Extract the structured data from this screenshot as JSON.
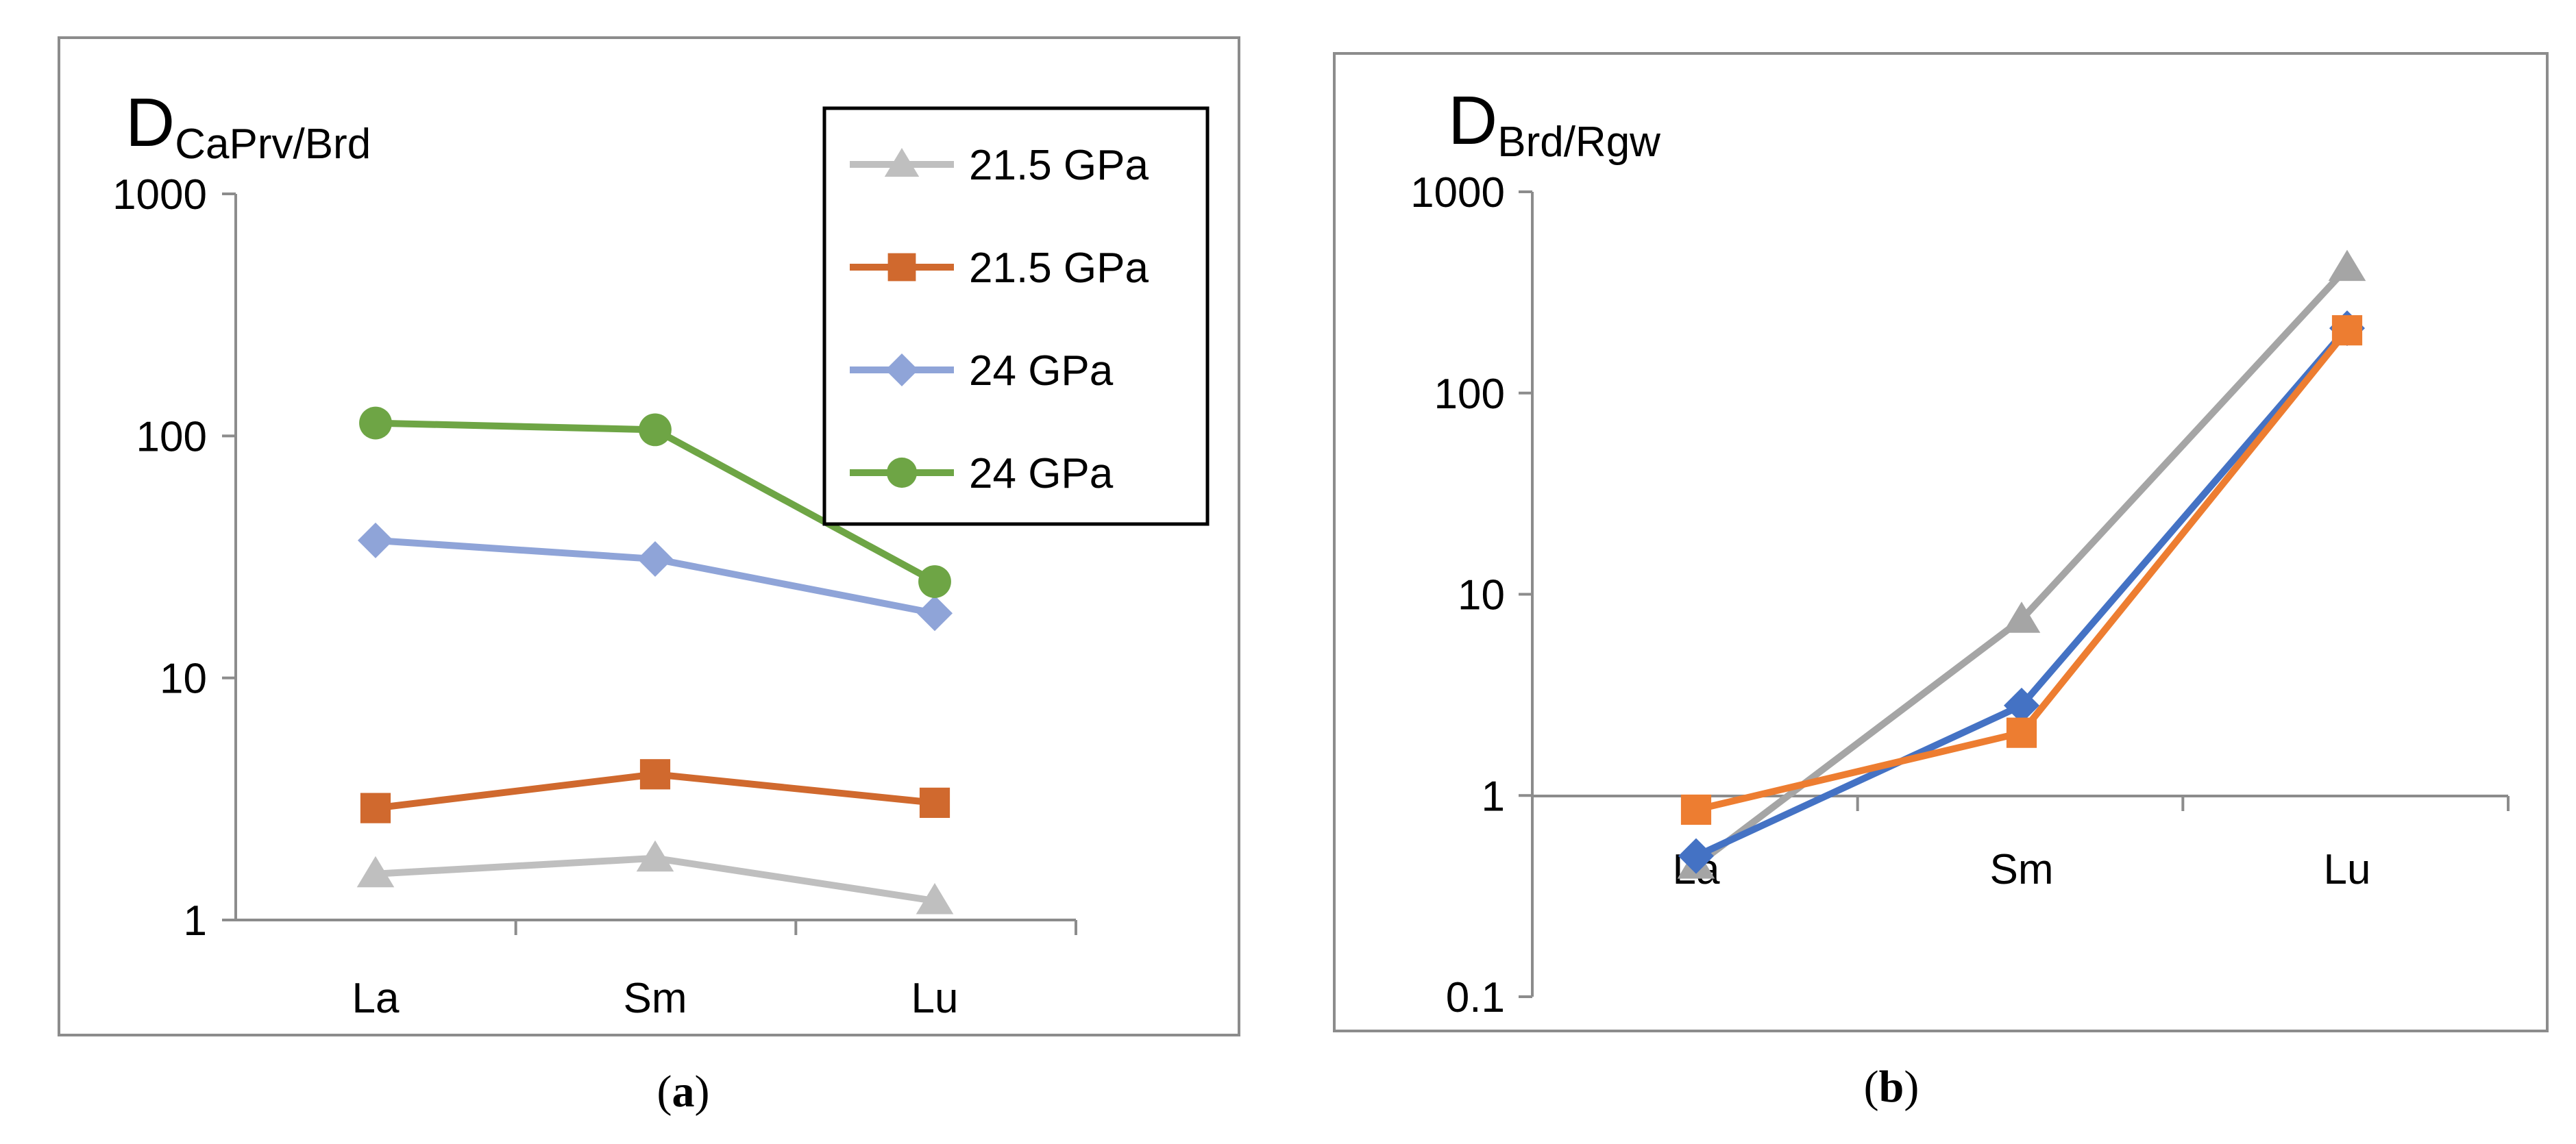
{
  "chart_data": [
    {
      "panel": "a",
      "caption_open": "(",
      "caption_letter": "a",
      "caption_close": ")",
      "type": "line",
      "scale": "log",
      "ylabel_main": "D",
      "ylabel_sub": "CaPrv/Brd",
      "categories": [
        "La",
        "Sm",
        "Lu"
      ],
      "ylim": [
        1,
        1000
      ],
      "yticks": [
        "1",
        "10",
        "100",
        "1000"
      ],
      "legend_position": "top-right",
      "series": [
        {
          "name": "21.5 GPa",
          "marker": "triangle",
          "color": "#bfbfbf",
          "values": [
            1.55,
            1.8,
            1.2
          ]
        },
        {
          "name": "21.5 GPa",
          "marker": "square",
          "color": "#d0692e",
          "values": [
            2.9,
            4.0,
            3.05
          ]
        },
        {
          "name": "24 GPa",
          "marker": "diamond",
          "color": "#8fa4d8",
          "values": [
            37,
            31,
            18.5
          ]
        },
        {
          "name": "24 GPa",
          "marker": "circle",
          "color": "#6ea545",
          "values": [
            113,
            106,
            25
          ]
        }
      ]
    },
    {
      "panel": "b",
      "caption_open": "(",
      "caption_letter": "b",
      "caption_close": ")",
      "type": "line",
      "scale": "log",
      "ylabel_main": "D",
      "ylabel_sub": "Brd/Rgw",
      "categories": [
        "La",
        "Sm",
        "Lu"
      ],
      "ylim": [
        0.1,
        1000
      ],
      "yticks": [
        "0.1",
        "1",
        "10",
        "100",
        "1000"
      ],
      "series": [
        {
          "name": "gray",
          "marker": "triangle",
          "color": "#a5a5a5",
          "values": [
            0.45,
            7.5,
            420
          ]
        },
        {
          "name": "blue",
          "marker": "diamond",
          "color": "#4472c4",
          "values": [
            0.5,
            2.8,
            210
          ]
        },
        {
          "name": "orange",
          "marker": "square",
          "color": "#ed7d31",
          "values": [
            0.85,
            2.05,
            205
          ]
        }
      ]
    }
  ]
}
